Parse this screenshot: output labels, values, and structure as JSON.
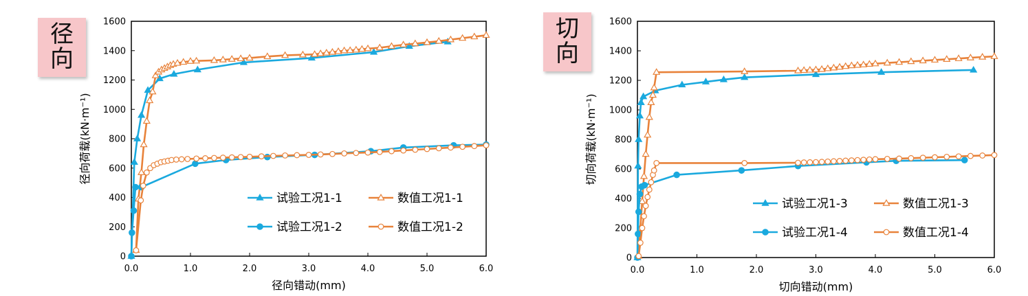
{
  "panels": [
    {
      "tag": [
        "径",
        "向"
      ],
      "legend_labels": [
        "试验工况1-1",
        "数值工况1-1",
        "试验工况1-2",
        "数值工况1-2"
      ]
    },
    {
      "tag": [
        "切",
        "向"
      ],
      "legend_labels": [
        "试验工况1-3",
        "数值工况1-3",
        "试验工况1-4",
        "数值工况1-4"
      ]
    }
  ],
  "colors": {
    "experiment": "#1aa9de",
    "numerical": "#e8823a"
  },
  "chart_data": [
    {
      "type": "line",
      "xlabel": "径向错动(mm)",
      "ylabel": "径向荷载(kN·m⁻¹)",
      "xlim": [
        0,
        6
      ],
      "ylim": [
        0,
        1600
      ],
      "xticks": [
        "0.0",
        "1.0",
        "2.0",
        "3.0",
        "4.0",
        "5.0",
        "6.0"
      ],
      "yticks": [
        "0",
        "200",
        "400",
        "600",
        "800",
        "1000",
        "1200",
        "1400",
        "1600"
      ],
      "legend_position": "bottom-right",
      "series": [
        {
          "name": "试验工况1-1",
          "marker": "filled-triangle",
          "color": "#1aa9de",
          "x": [
            0,
            0.05,
            0.1,
            0.17,
            0.28,
            0.48,
            0.72,
            1.12,
            1.9,
            3.05,
            4.1,
            4.7,
            5.35
          ],
          "y": [
            0,
            640,
            800,
            960,
            1130,
            1210,
            1240,
            1270,
            1320,
            1350,
            1390,
            1430,
            1460
          ]
        },
        {
          "name": "数值工况1-1",
          "marker": "open-triangle",
          "color": "#e8823a",
          "x": [
            0.08,
            0.12,
            0.17,
            0.21,
            0.26,
            0.31,
            0.36,
            0.41,
            0.46,
            0.51,
            0.56,
            0.61,
            0.66,
            0.71,
            0.78,
            0.88,
            1.0,
            1.1,
            1.4,
            1.55,
            1.7,
            1.85,
            2.0,
            2.3,
            2.6,
            2.9,
            3.1,
            3.2,
            3.3,
            3.4,
            3.5,
            3.6,
            3.7,
            3.8,
            3.9,
            4.0,
            4.2,
            4.4,
            4.6,
            4.8,
            5.0,
            5.2,
            5.4,
            5.6,
            5.8,
            6.0
          ],
          "y": [
            40,
            390,
            570,
            760,
            920,
            1060,
            1120,
            1230,
            1255,
            1270,
            1280,
            1290,
            1300,
            1308,
            1315,
            1322,
            1328,
            1330,
            1334,
            1338,
            1342,
            1346,
            1350,
            1360,
            1368,
            1372,
            1375,
            1380,
            1385,
            1390,
            1395,
            1400,
            1402,
            1405,
            1410,
            1414,
            1420,
            1430,
            1440,
            1448,
            1456,
            1465,
            1475,
            1485,
            1495,
            1505
          ]
        },
        {
          "name": "试验工况1-2",
          "marker": "filled-circle",
          "color": "#1aa9de",
          "x": [
            0,
            0.01,
            0.04,
            0.07,
            0.17,
            1.08,
            1.6,
            2.3,
            3.1,
            4.05,
            4.6,
            5.45,
            6.0
          ],
          "y": [
            0,
            160,
            310,
            470,
            470,
            630,
            655,
            675,
            690,
            715,
            740,
            755,
            760
          ]
        },
        {
          "name": "数值工况1-2",
          "marker": "open-circle",
          "color": "#e8823a",
          "x": [
            0.08,
            0.16,
            0.2,
            0.26,
            0.32,
            0.38,
            0.44,
            0.5,
            0.56,
            0.62,
            0.68,
            0.76,
            0.85,
            0.95,
            1.1,
            1.25,
            1.4,
            1.55,
            1.7,
            1.85,
            2.0,
            2.2,
            2.4,
            2.6,
            2.8,
            3.0,
            3.2,
            3.4,
            3.6,
            3.8,
            4.0,
            4.2,
            4.4,
            4.6,
            4.8,
            5.0,
            5.2,
            5.4,
            5.6,
            5.8,
            6.0
          ],
          "y": [
            40,
            380,
            480,
            570,
            600,
            620,
            630,
            640,
            645,
            650,
            655,
            658,
            660,
            662,
            665,
            667,
            669,
            671,
            673,
            675,
            677,
            680,
            683,
            686,
            688,
            690,
            693,
            696,
            700,
            703,
            706,
            710,
            715,
            720,
            725,
            730,
            735,
            740,
            745,
            750,
            755
          ]
        }
      ]
    },
    {
      "type": "line",
      "xlabel": "切向错动(mm)",
      "ylabel": "切向荷载(kN·m⁻¹)",
      "xlim": [
        0,
        6
      ],
      "ylim": [
        0,
        1600
      ],
      "xticks": [
        "0.0",
        "1.0",
        "2.0",
        "3.0",
        "4.0",
        "5.0",
        "6.0"
      ],
      "yticks": [
        "0",
        "200",
        "400",
        "600",
        "800",
        "1000",
        "1200",
        "1400",
        "1600"
      ],
      "legend_position": "bottom-right",
      "series": [
        {
          "name": "试验工况1-3",
          "marker": "filled-triangle",
          "color": "#1aa9de",
          "x": [
            0,
            0.01,
            0.02,
            0.04,
            0.06,
            0.1,
            0.3,
            0.75,
            1.15,
            1.45,
            1.8,
            3.0,
            4.1,
            5.65
          ],
          "y": [
            0,
            620,
            800,
            960,
            1050,
            1090,
            1130,
            1170,
            1190,
            1205,
            1220,
            1240,
            1255,
            1270
          ]
        },
        {
          "name": "数值工况1-3",
          "marker": "open-triangle",
          "color": "#e8823a",
          "x": [
            0.02,
            0.05,
            0.08,
            0.11,
            0.14,
            0.17,
            0.2,
            0.23,
            0.26,
            0.28,
            0.32,
            1.8,
            2.7,
            2.8,
            2.9,
            3.0,
            3.1,
            3.2,
            3.3,
            3.4,
            3.5,
            3.6,
            3.7,
            3.8,
            3.9,
            4.0,
            4.2,
            4.4,
            4.6,
            4.8,
            5.0,
            5.2,
            5.4,
            5.6,
            5.8,
            6.0
          ],
          "y": [
            10,
            200,
            380,
            550,
            700,
            830,
            950,
            1050,
            1100,
            1150,
            1255,
            1260,
            1265,
            1268,
            1270,
            1272,
            1275,
            1280,
            1285,
            1290,
            1295,
            1300,
            1303,
            1306,
            1310,
            1313,
            1318,
            1323,
            1328,
            1333,
            1338,
            1343,
            1348,
            1353,
            1358,
            1362
          ]
        },
        {
          "name": "试验工况1-4",
          "marker": "filled-circle",
          "color": "#1aa9de",
          "x": [
            0,
            0.01,
            0.02,
            0.04,
            0.07,
            0.12,
            0.66,
            1.75,
            2.7,
            3.85,
            4.35,
            5.5
          ],
          "y": [
            0,
            160,
            310,
            430,
            480,
            490,
            560,
            590,
            620,
            645,
            655,
            660
          ]
        },
        {
          "name": "数值工况1-4",
          "marker": "open-circle",
          "color": "#e8823a",
          "x": [
            0.02,
            0.05,
            0.08,
            0.11,
            0.14,
            0.17,
            0.2,
            0.23,
            0.26,
            0.28,
            0.32,
            1.8,
            2.7,
            2.8,
            2.9,
            3.0,
            3.1,
            3.2,
            3.3,
            3.4,
            3.5,
            3.6,
            3.7,
            3.8,
            3.9,
            4.0,
            4.2,
            4.4,
            4.6,
            4.8,
            5.0,
            5.2,
            5.4,
            5.6,
            5.8,
            6.0
          ],
          "y": [
            10,
            100,
            200,
            280,
            350,
            410,
            460,
            510,
            560,
            590,
            640,
            640,
            642,
            644,
            645,
            646,
            648,
            650,
            652,
            654,
            656,
            658,
            660,
            662,
            664,
            666,
            668,
            670,
            673,
            676,
            679,
            682,
            685,
            688,
            691,
            694
          ]
        }
      ]
    }
  ]
}
